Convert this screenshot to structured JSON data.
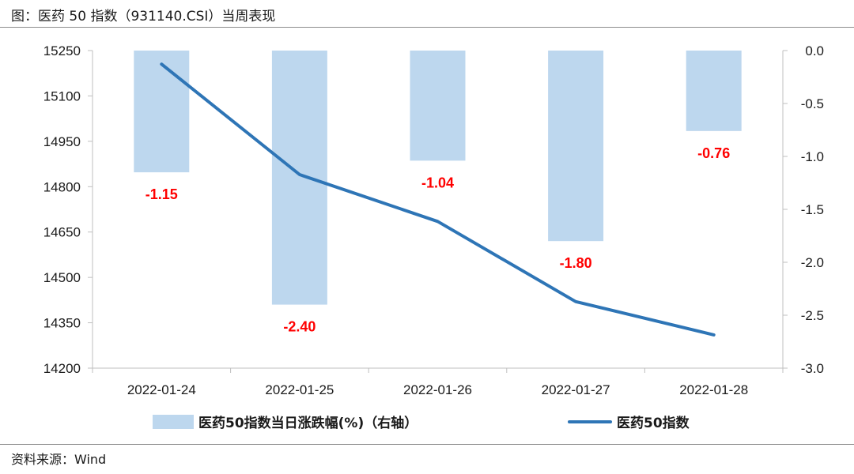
{
  "header": {
    "title": "图：医药 50 指数（931140.CSI）当周表现"
  },
  "footer": {
    "source": "资料来源：Wind"
  },
  "chart_data": {
    "type": "bar+line",
    "categories": [
      "2022-01-24",
      "2022-01-25",
      "2022-01-26",
      "2022-01-27",
      "2022-01-28"
    ],
    "series": [
      {
        "name": "医药50指数当日涨跌幅(%)（右轴）",
        "kind": "bar",
        "axis": "right",
        "values": [
          -1.15,
          -2.4,
          -1.04,
          -1.8,
          -0.76
        ],
        "labels": [
          "-1.15",
          "-2.40",
          "-1.04",
          "-1.80",
          "-0.76"
        ],
        "color": "#bdd7ee",
        "label_color": "#ff0000"
      },
      {
        "name": "医药50指数",
        "kind": "line",
        "axis": "left",
        "values": [
          15205,
          14840,
          14685,
          14420,
          14310
        ],
        "color": "#2e75b6"
      }
    ],
    "left_axis": {
      "ylim": [
        14200,
        15250
      ],
      "ticks": [
        "15250",
        "15100",
        "14950",
        "14800",
        "14650",
        "14500",
        "14350",
        "14200"
      ],
      "tick_values": [
        15250,
        15100,
        14950,
        14800,
        14650,
        14500,
        14350,
        14200
      ]
    },
    "right_axis": {
      "ylim": [
        -3.0,
        0.0
      ],
      "ticks": [
        "0.0",
        "-0.5",
        "-1.0",
        "-1.5",
        "-2.0",
        "-2.5",
        "-3.0"
      ],
      "tick_values": [
        0.0,
        -0.5,
        -1.0,
        -1.5,
        -2.0,
        -2.5,
        -3.0
      ]
    },
    "grid": false,
    "legend_position": "bottom"
  }
}
